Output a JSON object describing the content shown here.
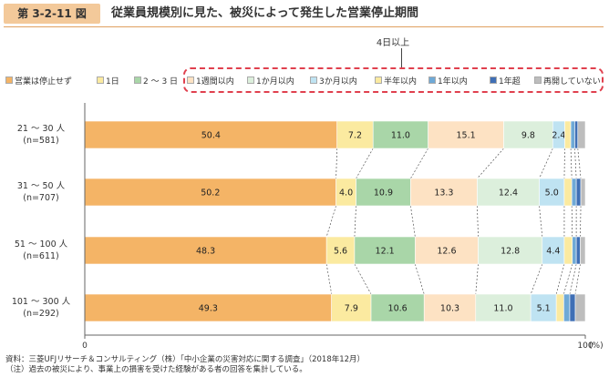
{
  "figure": {
    "number": "第 3-2-11 図",
    "title": "従業員規模別に見た、被災によって発生した営業停止期間"
  },
  "legend_group_label": "4日以上",
  "notes": [
    "資料：三菱UFJリサーチ＆コンサルティング（株）「中小企業の災害対応に関する調査」（2018年12月）",
    "（注）過去の被災により、事業上の損害を受けた経験がある者の回答を集計している。"
  ],
  "chart_data": {
    "type": "bar",
    "orientation": "horizontal",
    "stacked": true,
    "categories": [
      [
        "21 ～ 30 人",
        "(n=581)"
      ],
      [
        "31 ～ 50 人",
        "(n=707)"
      ],
      [
        "51 ～ 100 人",
        "(n=611)"
      ],
      [
        "101 ～ 300 人",
        "(n=292)"
      ]
    ],
    "series": [
      {
        "name": "営業は停止せず",
        "color": "#f4b466",
        "values": [
          50.4,
          50.2,
          48.3,
          49.3
        ]
      },
      {
        "name": "1日",
        "color": "#fbeaa0",
        "values": [
          7.2,
          4.0,
          5.6,
          7.9
        ]
      },
      {
        "name": "2 ～ 3 日",
        "color": "#a9d6a8",
        "values": [
          11.0,
          10.9,
          12.1,
          10.6
        ]
      },
      {
        "name": "1週間以内",
        "color": "#fde2c3",
        "values": [
          15.1,
          13.3,
          12.6,
          10.3
        ]
      },
      {
        "name": "1か月以内",
        "color": "#dcefdc",
        "values": [
          9.8,
          12.4,
          12.8,
          11.0
        ]
      },
      {
        "name": "3か月以内",
        "color": "#bfe3f2",
        "values": [
          2.4,
          5.0,
          4.4,
          5.1
        ]
      },
      {
        "name": "半年以内",
        "color": "#fbeaa0",
        "values": [
          1.2,
          1.5,
          1.6,
          1.5
        ]
      },
      {
        "name": "1年以内",
        "color": "#6fa9d6",
        "values": [
          0.8,
          0.9,
          0.8,
          1.2
        ]
      },
      {
        "name": "1年超",
        "color": "#3f6fb5",
        "values": [
          0.6,
          0.9,
          0.8,
          1.1
        ]
      },
      {
        "name": "再開していない",
        "color": "#bdbdbd",
        "values": [
          1.5,
          0.9,
          1.0,
          2.0
        ]
      }
    ],
    "data_labels_shown_for_series": [
      0,
      1,
      2,
      3,
      4,
      5
    ],
    "xlim": [
      0,
      100
    ],
    "x_ticks": [
      "0",
      "100"
    ],
    "x_unit": "(%)",
    "grid": false,
    "legend_position": "top"
  }
}
